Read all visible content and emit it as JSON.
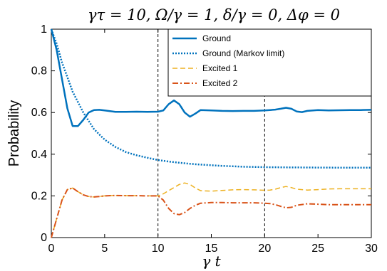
{
  "chart_data": {
    "type": "line",
    "title": "γτ = 10,  Ω/γ = 1,  δ/γ = 0,  Δφ = 0",
    "xlabel": "γ t",
    "ylabel": "Probability",
    "xlim": [
      0,
      30
    ],
    "ylim": [
      0,
      1
    ],
    "xticks": [
      0,
      5,
      10,
      15,
      20,
      25,
      30
    ],
    "yticks": [
      0,
      0.2,
      0.4,
      0.6,
      0.8,
      1
    ],
    "xtick_labels": [
      "0",
      "5",
      "10",
      "15",
      "20",
      "25",
      "30"
    ],
    "ytick_labels": [
      "0",
      "0.2",
      "0.4",
      "0.6",
      "0.8",
      "1"
    ],
    "vertical_dashed_lines": [
      10,
      20
    ],
    "grid": false,
    "legend_position": "top-right",
    "series": [
      {
        "name": "Ground",
        "style": "solid",
        "color": "#0072BD",
        "x": [
          0,
          0.5,
          1,
          1.5,
          2,
          2.5,
          3,
          3.5,
          4,
          4.5,
          5,
          6,
          7,
          8,
          9,
          10,
          10.5,
          11,
          11.5,
          12,
          12.5,
          13,
          13.5,
          14,
          15,
          16,
          17,
          18,
          19,
          20,
          20.5,
          21,
          21.5,
          22,
          22.5,
          23,
          23.5,
          24,
          25,
          26,
          27,
          28,
          29,
          30
        ],
        "y": [
          1,
          0.9,
          0.76,
          0.62,
          0.535,
          0.535,
          0.565,
          0.6,
          0.612,
          0.613,
          0.61,
          0.603,
          0.603,
          0.604,
          0.603,
          0.604,
          0.61,
          0.64,
          0.658,
          0.64,
          0.6,
          0.58,
          0.595,
          0.612,
          0.61,
          0.608,
          0.607,
          0.608,
          0.608,
          0.61,
          0.612,
          0.614,
          0.618,
          0.623,
          0.618,
          0.605,
          0.602,
          0.608,
          0.612,
          0.61,
          0.611,
          0.612,
          0.612,
          0.613
        ]
      },
      {
        "name": "Ground (Markov limit)",
        "style": "dotted",
        "color": "#0072BD",
        "x": [
          0,
          0.5,
          1,
          1.5,
          2,
          3,
          4,
          5,
          6,
          7,
          8,
          9,
          10,
          11,
          12,
          13,
          14,
          15,
          16,
          17,
          18,
          20,
          22,
          25,
          28,
          30
        ],
        "y": [
          1,
          0.93,
          0.84,
          0.77,
          0.7,
          0.6,
          0.52,
          0.47,
          0.435,
          0.41,
          0.395,
          0.383,
          0.372,
          0.365,
          0.359,
          0.354,
          0.35,
          0.347,
          0.344,
          0.342,
          0.34,
          0.338,
          0.337,
          0.336,
          0.335,
          0.335
        ]
      },
      {
        "name": "Excited 1",
        "style": "dashed",
        "color": "#EDB120",
        "x": [
          0,
          0.5,
          1,
          1.5,
          2,
          2.5,
          3,
          3.5,
          4,
          4.5,
          5,
          6,
          7,
          8,
          9,
          10,
          10.5,
          11,
          11.5,
          12,
          12.5,
          13,
          13.5,
          14,
          15,
          16,
          17,
          18,
          19,
          20,
          20.5,
          21,
          21.5,
          22,
          22.5,
          23,
          24,
          25,
          26,
          27,
          28,
          29,
          30
        ],
        "y": [
          0,
          0.09,
          0.18,
          0.23,
          0.238,
          0.22,
          0.205,
          0.197,
          0.195,
          0.197,
          0.2,
          0.202,
          0.201,
          0.201,
          0.2,
          0.2,
          0.21,
          0.225,
          0.24,
          0.255,
          0.262,
          0.255,
          0.238,
          0.225,
          0.223,
          0.226,
          0.229,
          0.23,
          0.229,
          0.227,
          0.228,
          0.232,
          0.24,
          0.245,
          0.24,
          0.232,
          0.228,
          0.23,
          0.233,
          0.234,
          0.234,
          0.234,
          0.234
        ]
      },
      {
        "name": "Excited 2",
        "style": "dash-dot",
        "color": "#D95319",
        "x": [
          0,
          0.5,
          1,
          1.5,
          2,
          2.5,
          3,
          3.5,
          4,
          4.5,
          5,
          6,
          7,
          8,
          9,
          10,
          10.5,
          11,
          11.5,
          12,
          12.5,
          13,
          13.5,
          14,
          15,
          16,
          17,
          18,
          19,
          20,
          20.5,
          21,
          21.5,
          22,
          22.5,
          23,
          24,
          25,
          26,
          27,
          28,
          29,
          30
        ],
        "y": [
          0,
          0.09,
          0.18,
          0.23,
          0.238,
          0.22,
          0.205,
          0.197,
          0.195,
          0.197,
          0.2,
          0.202,
          0.201,
          0.201,
          0.2,
          0.2,
          0.18,
          0.14,
          0.115,
          0.11,
          0.12,
          0.14,
          0.155,
          0.165,
          0.168,
          0.168,
          0.167,
          0.167,
          0.167,
          0.165,
          0.163,
          0.158,
          0.15,
          0.143,
          0.145,
          0.155,
          0.162,
          0.16,
          0.158,
          0.158,
          0.158,
          0.158,
          0.158
        ]
      }
    ]
  }
}
